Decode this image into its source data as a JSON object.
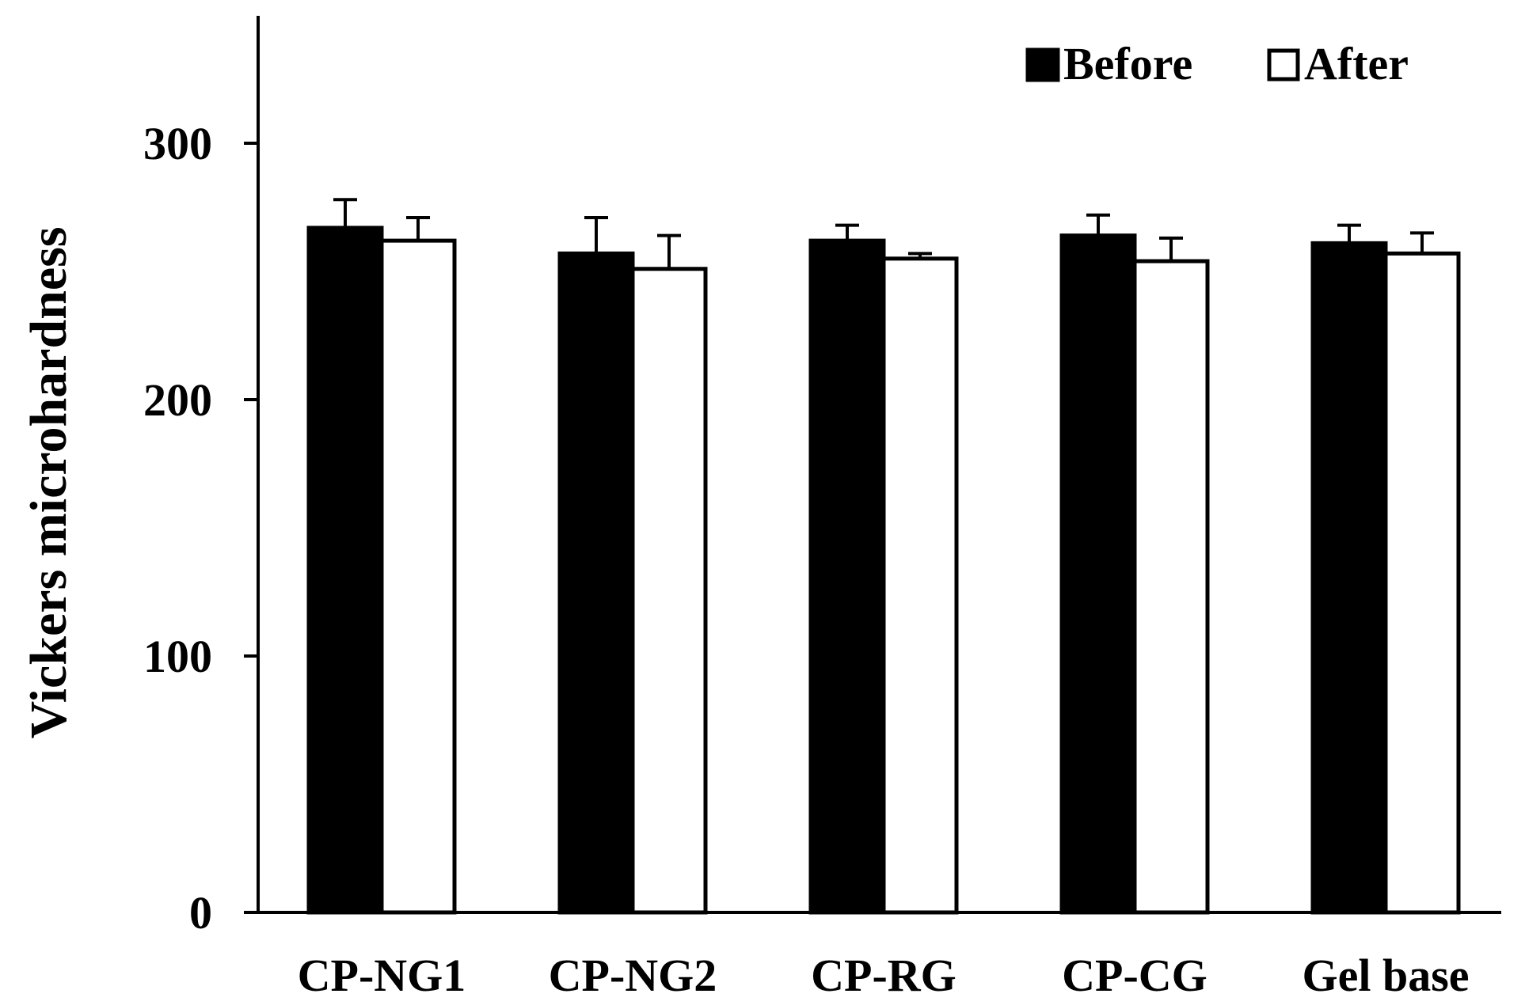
{
  "chart_data": {
    "type": "bar",
    "title": "",
    "xlabel": "",
    "ylabel": "Vickers microhardness",
    "ylim": [
      0,
      350
    ],
    "yticks": [
      "0",
      "100",
      "200",
      "300"
    ],
    "grid": false,
    "legend_position": "top-right",
    "categories": [
      "CP-NG1",
      "CP-NG2",
      "CP-RG",
      "CP-CG",
      "Gel base"
    ],
    "series": [
      {
        "name": "Before",
        "fill": "#000000",
        "values": [
          267,
          257,
          262,
          264,
          261
        ],
        "errors": [
          11,
          14,
          6,
          8,
          7
        ]
      },
      {
        "name": "After",
        "fill": "#ffffff",
        "values": [
          262,
          251,
          255,
          254,
          257
        ],
        "errors": [
          9,
          13,
          2,
          9,
          8
        ]
      }
    ]
  }
}
